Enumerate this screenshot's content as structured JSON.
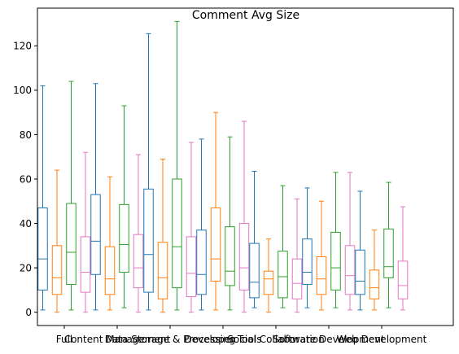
{
  "chart_data": {
    "type": "box",
    "title": "Comment Avg Size",
    "xlabel": "",
    "ylabel": "",
    "ylim": [
      -6,
      137
    ],
    "yticks": [
      0,
      20,
      40,
      60,
      80,
      100,
      120
    ],
    "categories": [
      "Full",
      "Content Management",
      "Data Storage & Processing",
      "Developer Tools",
      "Social Collaboration",
      "Software Development",
      "Web Development"
    ],
    "series_colors": [
      "#1f77b4",
      "#ff7f0e",
      "#2ca02c",
      "#e377c2"
    ],
    "boxes": [
      [
        {
          "whislo": 1,
          "q1": 10,
          "med": 24,
          "q3": 47,
          "whishi": 102
        },
        {
          "whislo": 0,
          "q1": 8,
          "med": 15.5,
          "q3": 30,
          "whishi": 64
        },
        {
          "whislo": 1,
          "q1": 12.5,
          "med": 27,
          "q3": 49,
          "whishi": 104
        },
        {
          "whislo": 0,
          "q1": 9,
          "med": 18,
          "q3": 34,
          "whishi": 72
        }
      ],
      [
        {
          "whislo": 1,
          "q1": 17,
          "med": 32,
          "q3": 53,
          "whishi": 103
        },
        {
          "whislo": 1,
          "q1": 8,
          "med": 15,
          "q3": 29.5,
          "whishi": 61
        },
        {
          "whislo": 2,
          "q1": 18,
          "med": 30.5,
          "q3": 48.5,
          "whishi": 93
        },
        {
          "whislo": 0,
          "q1": 11,
          "med": 20,
          "q3": 35,
          "whishi": 71
        }
      ],
      [
        {
          "whislo": 1,
          "q1": 9,
          "med": 26,
          "q3": 55.5,
          "whishi": 125.5
        },
        {
          "whislo": 0,
          "q1": 6,
          "med": 15.5,
          "q3": 31.5,
          "whishi": 69
        },
        {
          "whislo": 1,
          "q1": 11,
          "med": 29.5,
          "q3": 60,
          "whishi": 131
        },
        {
          "whislo": 0,
          "q1": 7,
          "med": 17.5,
          "q3": 34,
          "whishi": 76.5
        }
      ],
      [
        {
          "whislo": 1,
          "q1": 8,
          "med": 17,
          "q3": 37,
          "whishi": 78
        },
        {
          "whislo": 1,
          "q1": 14,
          "med": 24,
          "q3": 47,
          "whishi": 90
        },
        {
          "whislo": 1,
          "q1": 12,
          "med": 18.5,
          "q3": 38.5,
          "whishi": 79
        },
        {
          "whislo": 0,
          "q1": 10,
          "med": 20,
          "q3": 40,
          "whishi": 86
        }
      ],
      [
        {
          "whislo": 2,
          "q1": 6.5,
          "med": 13.5,
          "q3": 31,
          "whishi": 63.5
        },
        {
          "whislo": 0,
          "q1": 8,
          "med": 15,
          "q3": 18.5,
          "whishi": 33
        },
        {
          "whislo": 2,
          "q1": 6.5,
          "med": 16,
          "q3": 27.5,
          "whishi": 57
        },
        {
          "whislo": 0,
          "q1": 6,
          "med": 13,
          "q3": 24,
          "whishi": 51
        }
      ],
      [
        {
          "whislo": 2,
          "q1": 12.5,
          "med": 18,
          "q3": 33,
          "whishi": 56
        },
        {
          "whislo": 1,
          "q1": 8,
          "med": 15,
          "q3": 25,
          "whishi": 50
        },
        {
          "whislo": 2,
          "q1": 10,
          "med": 20,
          "q3": 36,
          "whishi": 63
        },
        {
          "whislo": 1,
          "q1": 8,
          "med": 16.5,
          "q3": 30,
          "whishi": 63
        }
      ],
      [
        {
          "whislo": 1,
          "q1": 8,
          "med": 14,
          "q3": 28,
          "whishi": 54.5
        },
        {
          "whislo": 1,
          "q1": 6,
          "med": 11,
          "q3": 19,
          "whishi": 37
        },
        {
          "whislo": 2,
          "q1": 15.5,
          "med": 20.5,
          "q3": 37.5,
          "whishi": 58.5
        },
        {
          "whislo": 1,
          "q1": 6,
          "med": 12,
          "q3": 23,
          "whishi": 47.5
        }
      ]
    ]
  }
}
